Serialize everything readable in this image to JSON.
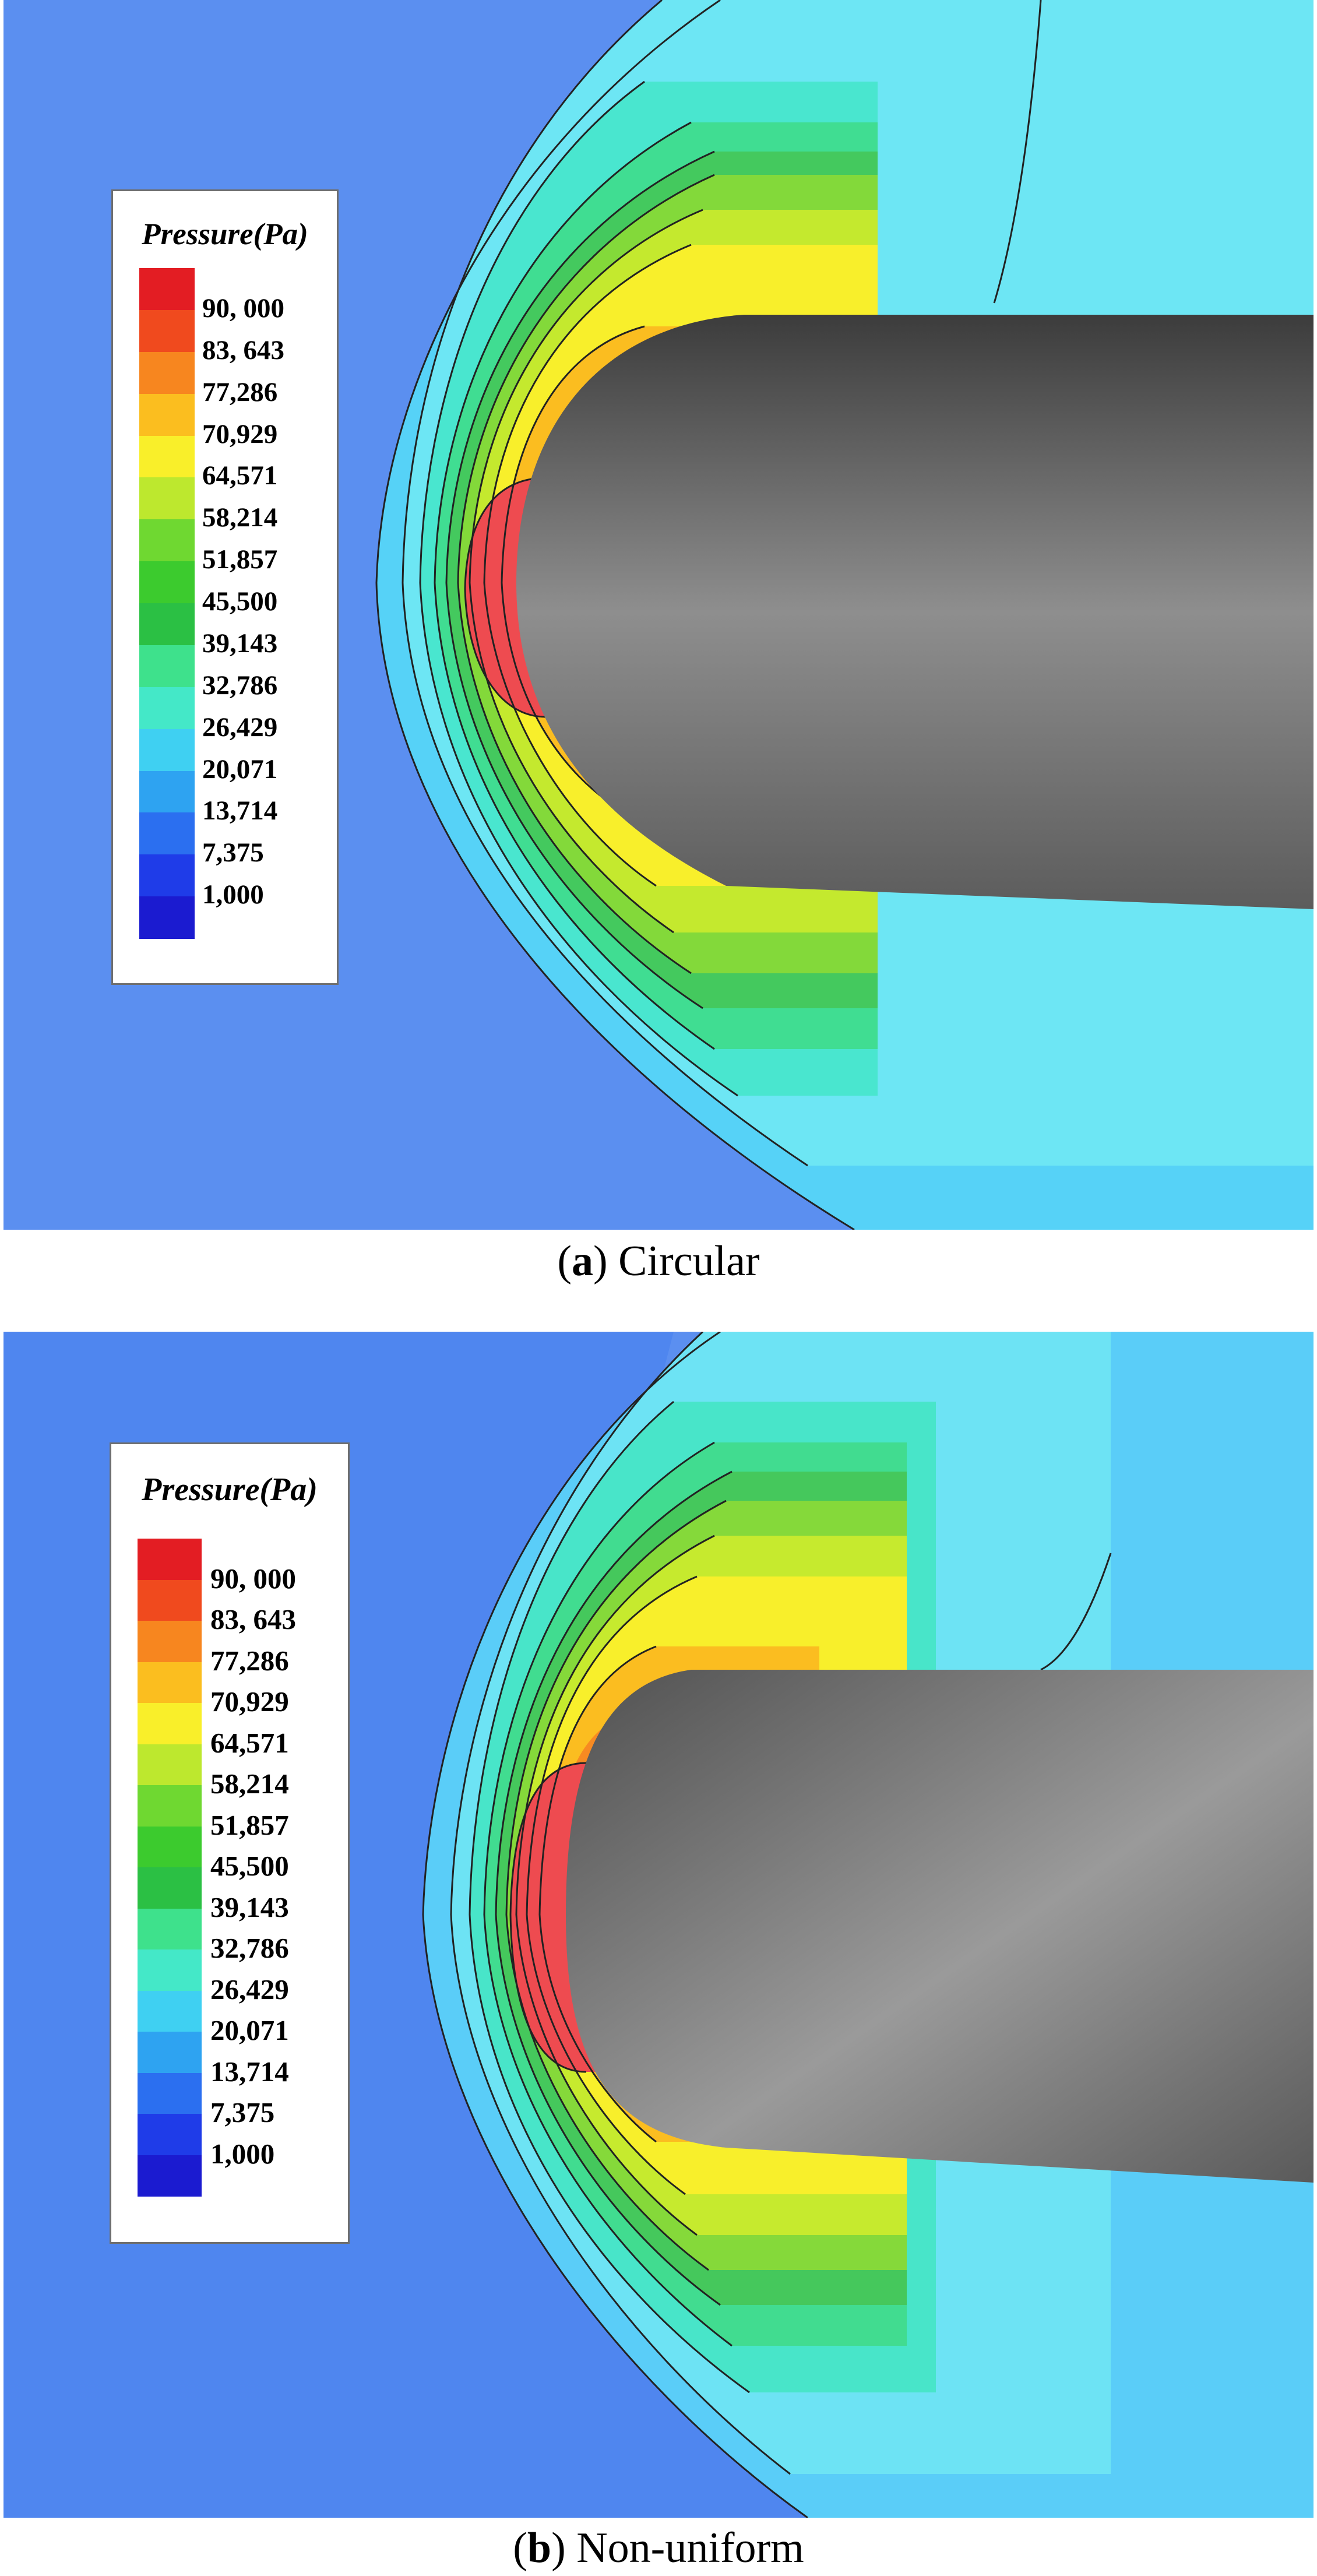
{
  "figure_a": {
    "legend_title": "Pressure(Pa)",
    "labels": [
      "90, 000",
      "83, 643",
      "77,286",
      "70,929",
      "64,571",
      "58,214",
      "51,857",
      "45,500",
      "39,143",
      "32,786",
      "26,429",
      "20,071",
      "13,714",
      "7,375",
      "1,000"
    ],
    "caption_letter": "a",
    "caption_text": "Circular"
  },
  "figure_b": {
    "legend_title": "Pressure(Pa)",
    "labels": [
      "90, 000",
      "83, 643",
      "77,286",
      "70,929",
      "64,571",
      "58,214",
      "51,857",
      "45,500",
      "39,143",
      "32,786",
      "26,429",
      "20,071",
      "13,714",
      "7,375",
      "1,000"
    ],
    "caption_letter": "b",
    "caption_text": "Non-uniform"
  },
  "colormap": [
    "#e31d23",
    "#f04a1e",
    "#f7861f",
    "#fbbe1f",
    "#f9ef2a",
    "#bde82e",
    "#6fd831",
    "#3ccb2e",
    "#2bc044",
    "#3ee18c",
    "#44e8c8",
    "#3fd0f2",
    "#2ea3f1",
    "#2b6ff0",
    "#1f3ce8",
    "#1b1bd0"
  ],
  "background_color": "#5b8ff0",
  "body_colors": {
    "dark": "#3e3e3e",
    "light": "#8c8c8c"
  }
}
